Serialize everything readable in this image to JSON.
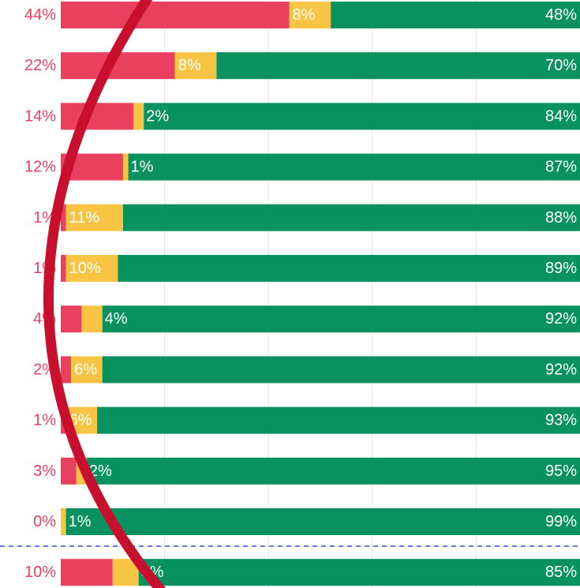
{
  "chart_data": {
    "type": "stacked-bar-horizontal",
    "xlim": [
      0,
      100
    ],
    "xticks": [
      20,
      40,
      60,
      80
    ],
    "grid": true,
    "series": [
      {
        "color": "#e8405e",
        "values": [
          44,
          22,
          14,
          12,
          1,
          1,
          4,
          2,
          1,
          3,
          0,
          10
        ],
        "value_labels": [
          "44%",
          "22%",
          "14%",
          "12%",
          "1%",
          "1%",
          "4%",
          "2%",
          "1%",
          "3%",
          "0%",
          "10%"
        ]
      },
      {
        "color": "#f7c443",
        "values": [
          8,
          8,
          2,
          1,
          11,
          10,
          4,
          6,
          6,
          2,
          1,
          5
        ],
        "value_labels": [
          "8%",
          "8%",
          "2%",
          "1%",
          "11%",
          "10%",
          "4%",
          "6%",
          "6%",
          "2%",
          "1%",
          "5%"
        ]
      },
      {
        "color": "#0a9160",
        "values": [
          48,
          70,
          84,
          87,
          88,
          89,
          92,
          92,
          93,
          95,
          99,
          85
        ],
        "value_labels": [
          "48%",
          "70%",
          "84%",
          "87%",
          "88%",
          "89%",
          "92%",
          "92%",
          "93%",
          "95%",
          "99%",
          "85%"
        ]
      }
    ]
  }
}
